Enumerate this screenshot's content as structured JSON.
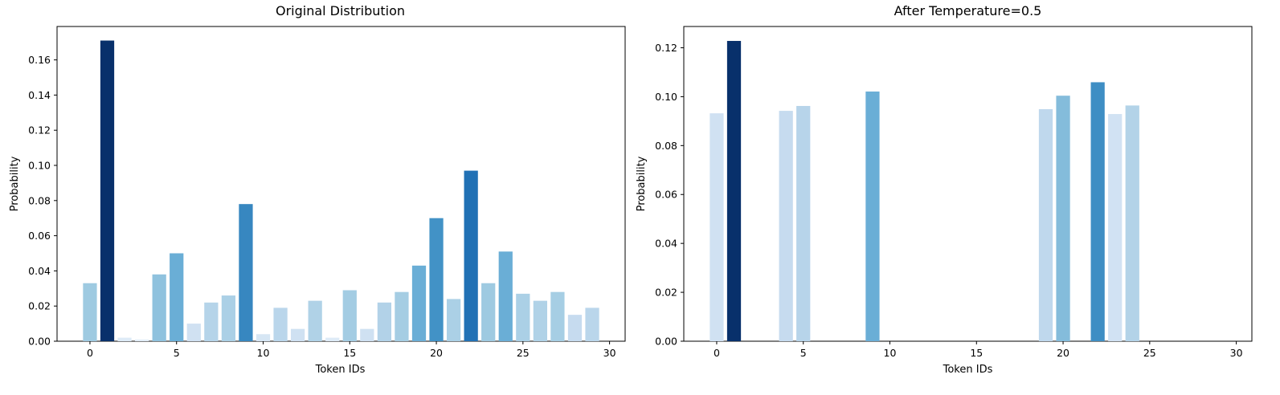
{
  "chart_data": [
    {
      "type": "bar",
      "title": "Original Distribution",
      "xlabel": "Token IDs",
      "ylabel": "Probability",
      "xlim": [
        -1.9,
        30.9
      ],
      "ylim": [
        0,
        0.179
      ],
      "xticks": [
        0,
        5,
        10,
        15,
        20,
        25,
        30
      ],
      "yticks": [
        0.0,
        0.02,
        0.04,
        0.06,
        0.08,
        0.1,
        0.12,
        0.14,
        0.16
      ],
      "ytick_decimals": 2,
      "grid": false,
      "colormap": "Blues",
      "x": [
        0,
        1,
        2,
        3,
        4,
        5,
        6,
        7,
        8,
        9,
        10,
        11,
        12,
        13,
        14,
        15,
        16,
        17,
        18,
        19,
        20,
        21,
        22,
        23,
        24,
        25,
        26,
        27,
        28,
        29
      ],
      "values": [
        0.033,
        0.171,
        0.002,
        0.001,
        0.038,
        0.05,
        0.01,
        0.022,
        0.026,
        0.078,
        0.004,
        0.019,
        0.007,
        0.023,
        0.002,
        0.029,
        0.007,
        0.022,
        0.028,
        0.043,
        0.07,
        0.024,
        0.097,
        0.033,
        0.051,
        0.027,
        0.023,
        0.028,
        0.015,
        0.019
      ],
      "colors": [
        "#9ecae1",
        "#08306b",
        "#deebf7",
        "#e3eef8",
        "#8fc2de",
        "#6aaed6",
        "#d0e1f2",
        "#b5d4e9",
        "#abd0e6",
        "#3787c0",
        "#d6e6f4",
        "#bad6eb",
        "#cfe1f2",
        "#b0d2e7",
        "#deebf7",
        "#a3cce3",
        "#cfe1f2",
        "#b2d2e8",
        "#a5cde3",
        "#6aaed6",
        "#4292c6",
        "#abd0e6",
        "#2171b5",
        "#9ecae1",
        "#6aaed6",
        "#abd0e6",
        "#b0d2e7",
        "#a6cee4",
        "#c6dbef",
        "#bad6eb"
      ]
    },
    {
      "type": "bar",
      "title": "After Temperature=0.5",
      "xlabel": "Token IDs",
      "ylabel": "Probability",
      "xlim": [
        -1.9,
        30.9
      ],
      "ylim": [
        0,
        0.1287
      ],
      "xticks": [
        0,
        5,
        10,
        15,
        20,
        25,
        30
      ],
      "yticks": [
        0.0,
        0.02,
        0.04,
        0.06,
        0.08,
        0.1,
        0.12
      ],
      "ytick_decimals": 2,
      "grid": false,
      "colormap": "Blues",
      "x": [
        0,
        1,
        4,
        5,
        9,
        19,
        20,
        22,
        23,
        24
      ],
      "values": [
        0.0932,
        0.1228,
        0.0942,
        0.0962,
        0.1021,
        0.0949,
        0.1004,
        0.1059,
        0.0929,
        0.0964
      ],
      "colors": [
        "#d0e1f2",
        "#08306b",
        "#c6dbef",
        "#b7d4ea",
        "#6aaed6",
        "#bfd8ed",
        "#84bcdb",
        "#3e8ec4",
        "#d1e2f3",
        "#b3d3e8"
      ]
    }
  ]
}
